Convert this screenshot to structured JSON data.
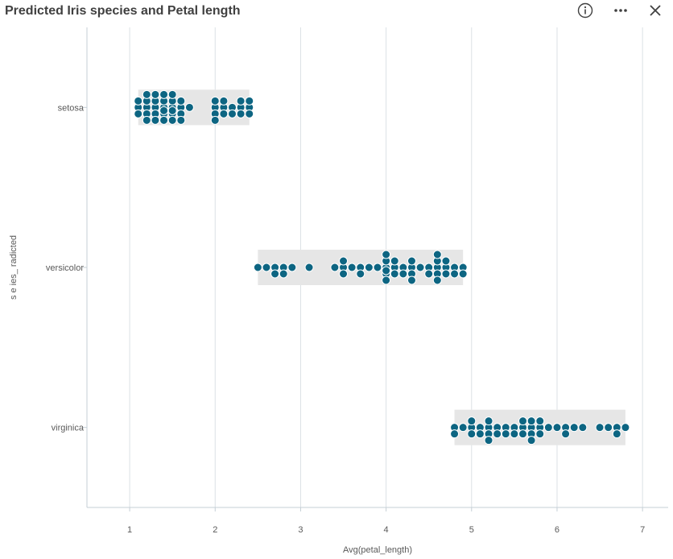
{
  "header": {
    "title": "Predicted Iris species and Petal length",
    "icons": {
      "info": "info-icon",
      "more": "more-icon",
      "close": "close-icon"
    }
  },
  "colors": {
    "point": "#0d6582",
    "range": "#e6e6e6",
    "grid": "#dbe1e5",
    "axis": "#c5cfd6",
    "text": "#595959"
  },
  "chart_data": {
    "type": "scatter",
    "subtype": "distribution-plot",
    "title": "",
    "xlabel": "Avg(petal_length)",
    "ylabel": "s  e  ies_  radicted",
    "xlim": [
      0.5,
      7.3
    ],
    "xticks": [
      1,
      2,
      3,
      4,
      5,
      6,
      7
    ],
    "grid": true,
    "legend": "none",
    "categories": [
      "setosa",
      "versicolor",
      "virginica"
    ],
    "ranges": [
      {
        "category": "setosa",
        "min": 1.1,
        "max": 2.4
      },
      {
        "category": "versicolor",
        "min": 2.5,
        "max": 4.9
      },
      {
        "category": "virginica",
        "min": 4.8,
        "max": 6.8
      }
    ],
    "series": [
      {
        "category": "setosa",
        "values": [
          1.1,
          1.1,
          1.1,
          1.2,
          1.2,
          1.2,
          1.2,
          1.2,
          1.3,
          1.3,
          1.3,
          1.3,
          1.3,
          1.4,
          1.4,
          1.4,
          1.4,
          1.4,
          1.4,
          1.5,
          1.5,
          1.5,
          1.5,
          1.5,
          1.5,
          1.6,
          1.6,
          1.6,
          1.6,
          1.7,
          2.0,
          2.0,
          2.0,
          2.0,
          2.1,
          2.1,
          2.1,
          2.2,
          2.2,
          2.3,
          2.3,
          2.3,
          2.4,
          2.4,
          2.4
        ]
      },
      {
        "category": "versicolor",
        "values": [
          2.5,
          2.6,
          2.7,
          2.7,
          2.8,
          2.8,
          2.9,
          3.1,
          3.4,
          3.5,
          3.5,
          3.5,
          3.6,
          3.7,
          3.7,
          3.8,
          3.9,
          4.0,
          4.0,
          4.0,
          4.0,
          4.0,
          4.0,
          4.1,
          4.1,
          4.1,
          4.2,
          4.2,
          4.3,
          4.3,
          4.3,
          4.3,
          4.4,
          4.5,
          4.5,
          4.6,
          4.6,
          4.6,
          4.6,
          4.6,
          4.7,
          4.7,
          4.7,
          4.8,
          4.8,
          4.9,
          4.9
        ]
      },
      {
        "category": "virginica",
        "values": [
          4.8,
          4.8,
          4.9,
          5.0,
          5.0,
          5.0,
          5.1,
          5.1,
          5.2,
          5.2,
          5.2,
          5.2,
          5.3,
          5.3,
          5.4,
          5.4,
          5.5,
          5.5,
          5.6,
          5.6,
          5.6,
          5.7,
          5.7,
          5.7,
          5.7,
          5.8,
          5.8,
          5.8,
          5.9,
          6.0,
          6.1,
          6.1,
          6.2,
          6.3,
          6.5,
          6.6,
          6.7,
          6.7,
          6.8
        ]
      }
    ]
  }
}
